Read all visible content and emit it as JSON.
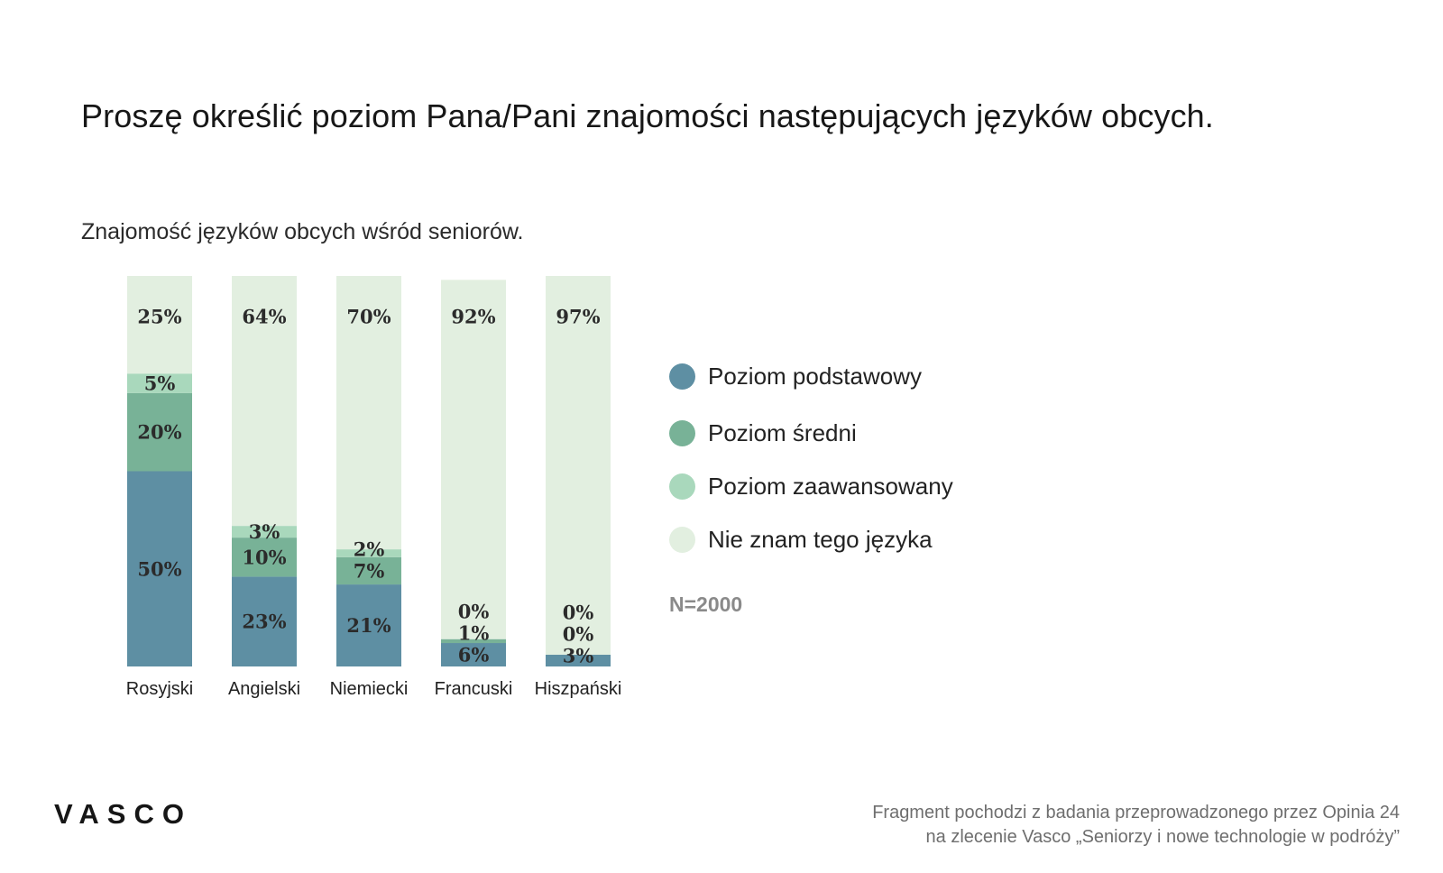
{
  "headline": "Proszę określić poziom Pana/Pani znajomości następujących języków obcych.",
  "subtitle": "Znajomość języków obcych wśród seniorów.",
  "legend": [
    {
      "label": "Poziom podstawowy",
      "color": "#5e8fa3"
    },
    {
      "label": "Poziom średni",
      "color": "#78b297"
    },
    {
      "label": "Poziom zaawansowany",
      "color": "#a9d8bc"
    },
    {
      "label": "Nie znam tego języka",
      "color": "#e2efe0"
    }
  ],
  "sample_size": "N=2000",
  "brand": "VASCO",
  "source": {
    "line1": "Fragment pochodzi z badania przeprowadzonego przez Opinia 24",
    "line2": "na zlecenie Vasco „Seniorzy i nowe technologie w podróży”"
  },
  "chart_data": {
    "type": "bar",
    "stacked": true,
    "orientation": "vertical",
    "categories": [
      "Rosyjski",
      "Angielski",
      "Niemiecki",
      "Francuski",
      "Hiszpański"
    ],
    "series": [
      {
        "name": "Poziom podstawowy",
        "color": "#5e8fa3",
        "values": [
          50,
          23,
          21,
          6,
          3
        ]
      },
      {
        "name": "Poziom średni",
        "color": "#78b297",
        "values": [
          20,
          10,
          7,
          1,
          0
        ]
      },
      {
        "name": "Poziom zaawansowany",
        "color": "#a9d8bc",
        "values": [
          5,
          3,
          2,
          0,
          0
        ]
      },
      {
        "name": "Nie znam tego języka",
        "color": "#e2efe0",
        "values": [
          25,
          64,
          70,
          92,
          97
        ]
      }
    ],
    "value_suffix": "%",
    "ylim": [
      0,
      100
    ],
    "grid": false,
    "legend_position": "right"
  }
}
